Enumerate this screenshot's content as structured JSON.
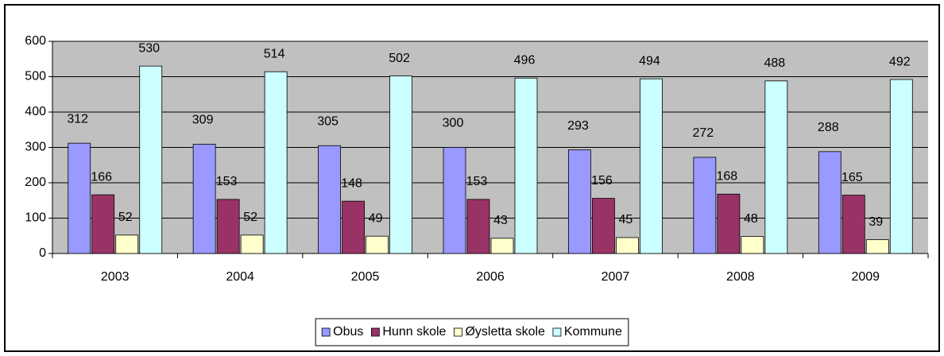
{
  "chart_data": {
    "type": "bar",
    "categories": [
      "2003",
      "2004",
      "2005",
      "2006",
      "2007",
      "2008",
      "2009"
    ],
    "series": [
      {
        "name": "Obus",
        "color": "#9999ff",
        "values": [
          312,
          309,
          305,
          300,
          293,
          272,
          288
        ]
      },
      {
        "name": "Hunn skole",
        "color": "#993366",
        "values": [
          166,
          153,
          148,
          153,
          156,
          168,
          165
        ]
      },
      {
        "name": "Øysletta skole",
        "color": "#ffffcc",
        "values": [
          52,
          52,
          49,
          43,
          45,
          48,
          39
        ]
      },
      {
        "name": "Kommune",
        "color": "#ccffff",
        "values": [
          530,
          514,
          502,
          496,
          494,
          488,
          492
        ]
      }
    ],
    "ylim": [
      0,
      600
    ],
    "yticks": [
      0,
      100,
      200,
      300,
      400,
      500,
      600
    ],
    "grid": true,
    "plot_background": "#c0c0c0",
    "legend": "bottom"
  }
}
